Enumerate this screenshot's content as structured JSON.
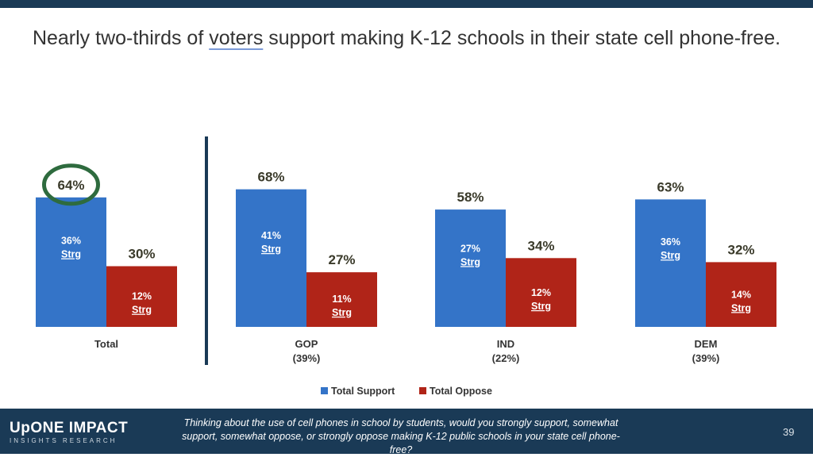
{
  "title_pre": "Nearly two-thirds of ",
  "title_ul": "voters",
  "title_post": " support making K-12 schools in their state cell phone-free.",
  "colors": {
    "support": "#3474c8",
    "oppose": "#b02418",
    "highlight_circle": "#2e6b3e",
    "footer": "#1a3a56"
  },
  "chart_data": {
    "type": "bar",
    "categories": [
      "Total",
      "GOP",
      "IND",
      "DEM"
    ],
    "category_sublabels": [
      "",
      "(39%)",
      "(22%)",
      "(39%)"
    ],
    "series": [
      {
        "name": "Total Support",
        "values": [
          64,
          68,
          58,
          63
        ],
        "strong": [
          36,
          41,
          27,
          36
        ]
      },
      {
        "name": "Total Oppose",
        "values": [
          30,
          27,
          34,
          32
        ],
        "strong": [
          12,
          11,
          12,
          14
        ]
      }
    ],
    "strong_label": "Strg",
    "highlighted": "Total Support - Total",
    "legend_position": "bottom",
    "ylim": [
      0,
      100
    ],
    "grid": false
  },
  "footer": {
    "logo_line1": "UpONE IMPACT",
    "logo_line2": "INSIGHTS RESEARCH",
    "question": "Thinking about the use of cell phones in school by students, would you strongly support, somewhat support, somewhat oppose, or strongly oppose making K-12 public schools in your state cell phone-free?",
    "page_number": "39"
  }
}
